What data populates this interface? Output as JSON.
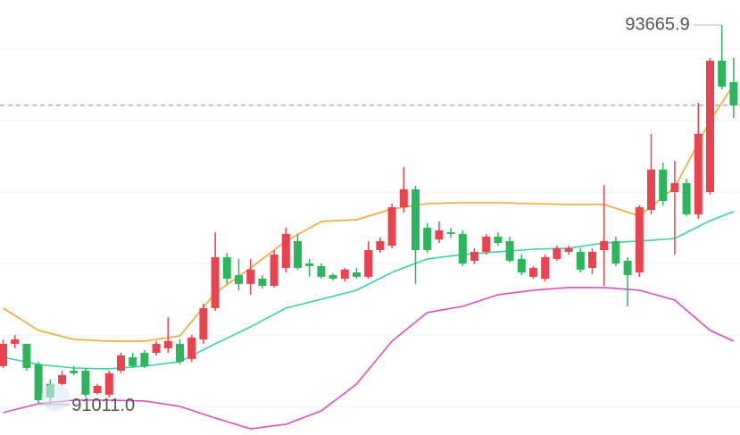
{
  "chart_data": {
    "type": "candlestick",
    "ylim": [
      90797,
      93841
    ],
    "up_color": "#e8434f",
    "down_color": "#2db55d",
    "open": [
      91279,
      91435,
      91435,
      91291,
      91154,
      91154,
      91247,
      91247,
      91091,
      91079,
      91247,
      91341,
      91372,
      91372,
      91404,
      91435,
      91329,
      91466,
      91685,
      92041,
      91916,
      91854,
      91891,
      91841,
      91966,
      92154,
      91997,
      91979,
      91916,
      91891,
      91935,
      91904,
      92091,
      92122,
      92391,
      92516,
      92247,
      92166,
      92216,
      92204,
      92016,
      92079,
      92185,
      92154,
      92029,
      91904,
      91891,
      92029,
      92079,
      92079,
      91966,
      92091,
      92154,
      92016,
      91935,
      92372,
      92654,
      92497,
      92560,
      92341,
      92497,
      93416,
      93266
    ],
    "high": [
      91466,
      91497,
      91435,
      91310,
      91185,
      91247,
      91279,
      91266,
      91154,
      91247,
      91372,
      91372,
      91391,
      91454,
      91622,
      91466,
      91497,
      91716,
      92216,
      92072,
      92029,
      92029,
      91916,
      92091,
      92247,
      92204,
      92029,
      91997,
      91929,
      91966,
      91966,
      92154,
      92179,
      92416,
      92672,
      92541,
      92279,
      92291,
      92247,
      92229,
      92104,
      92204,
      92216,
      92185,
      92060,
      91979,
      92060,
      92122,
      92122,
      92104,
      92104,
      92547,
      92185,
      92041,
      92404,
      92904,
      92704,
      92716,
      92591,
      93122,
      93435,
      93665.9,
      93435
    ],
    "low": [
      91266,
      91404,
      91247,
      91016,
      91011,
      91141,
      91216,
      91060,
      91079,
      91060,
      91229,
      91266,
      91266,
      91354,
      91372,
      91291,
      91310,
      91435,
      91666,
      91854,
      91810,
      91779,
      91822,
      91829,
      91935,
      91954,
      91904,
      91891,
      91879,
      91872,
      91891,
      91891,
      92072,
      92104,
      92354,
      91854,
      92072,
      92141,
      92179,
      91979,
      91991,
      92060,
      92122,
      92004,
      91916,
      91891,
      91872,
      92016,
      92060,
      91935,
      91922,
      91841,
      91979,
      91697,
      91904,
      92341,
      92404,
      92060,
      92329,
      92310,
      92479,
      93216,
      93016
    ],
    "close": [
      91435,
      91466,
      91266,
      91041,
      91060,
      91216,
      91229,
      91079,
      91141,
      91229,
      91354,
      91279,
      91279,
      91435,
      91454,
      91310,
      91479,
      91685,
      92041,
      91891,
      91854,
      91954,
      91841,
      92060,
      92204,
      91966,
      91979,
      91904,
      91891,
      91954,
      91904,
      92091,
      92154,
      92391,
      92516,
      92091,
      92091,
      92229,
      92204,
      91997,
      92079,
      92185,
      92141,
      92016,
      91935,
      91966,
      92041,
      92104,
      92104,
      91954,
      92079,
      92154,
      91997,
      91916,
      92391,
      92654,
      92435,
      92560,
      92341,
      92904,
      93416,
      93235,
      93104
    ],
    "bands": [
      {
        "color": "#f0a830",
        "x": [
          0,
          3,
          6,
          9,
          12,
          15,
          18,
          21,
          24,
          27,
          30,
          33,
          36,
          39,
          42,
          45,
          48,
          51,
          54,
          57,
          60,
          62
        ],
        "values": [
          91685,
          91529,
          91466,
          91454,
          91454,
          91491,
          91791,
          91966,
          92154,
          92291,
          92304,
          92379,
          92416,
          92422,
          92422,
          92416,
          92410,
          92410,
          92329,
          92529,
          92997,
          93247
        ]
      },
      {
        "color": "#3ad1a8",
        "x": [
          0,
          3,
          6,
          9,
          12,
          15,
          18,
          21,
          24,
          27,
          30,
          33,
          36,
          39,
          42,
          45,
          48,
          51,
          54,
          57,
          60,
          62
        ],
        "values": [
          91341,
          91291,
          91266,
          91260,
          91279,
          91310,
          91435,
          91554,
          91685,
          91747,
          91810,
          91935,
          92029,
          92060,
          92079,
          92097,
          92104,
          92141,
          92154,
          92172,
          92297,
          92360
        ]
      },
      {
        "color": "#d94fc0",
        "x": [
          0,
          3,
          6,
          9,
          12,
          15,
          18,
          21,
          24,
          27,
          30,
          33,
          36,
          39,
          42,
          45,
          48,
          51,
          54,
          57,
          60,
          62
        ],
        "values": [
          90954,
          91016,
          91041,
          91041,
          91035,
          90997,
          90916,
          90841,
          90872,
          90966,
          91154,
          91454,
          91654,
          91697,
          91779,
          91810,
          91829,
          91829,
          91810,
          91741,
          91529,
          91454
        ]
      }
    ],
    "max_label": {
      "value": 93665.9,
      "label": "93665.9"
    },
    "min_label": {
      "value": 91011,
      "label": "91011.0"
    }
  }
}
